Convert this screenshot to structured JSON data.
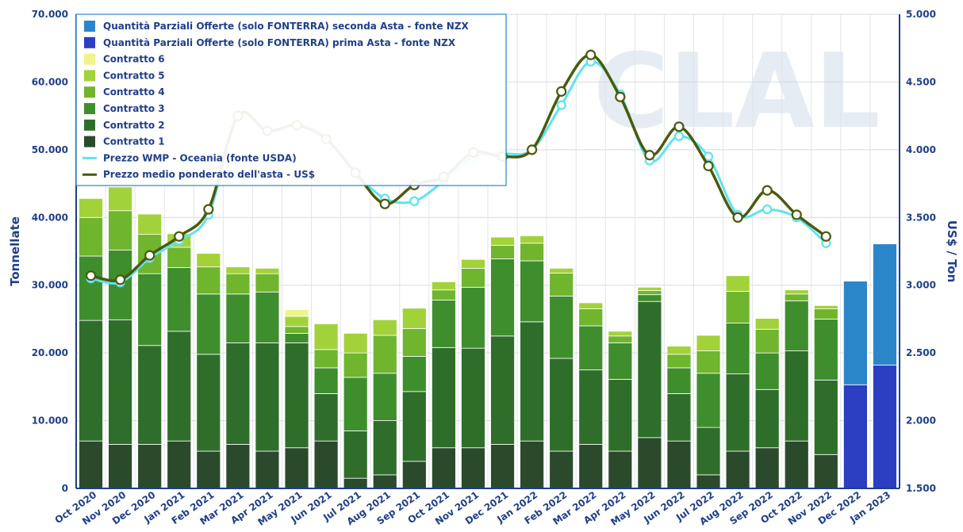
{
  "watermark": "CLAL",
  "chart_data": {
    "type": "bar",
    "stacked": true,
    "grid": true,
    "legend_position": "top-left",
    "categories": [
      "Oct 2020",
      "Nov 2020",
      "Dec 2020",
      "Jan 2021",
      "Feb 2021",
      "Mar 2021",
      "Apr 2021",
      "May 2021",
      "Jun 2021",
      "Jul 2021",
      "Aug 2021",
      "Sep 2021",
      "Oct 2021",
      "Nov 2021",
      "Dec 2021",
      "Jan 2022",
      "Feb 2022",
      "Mar 2022",
      "Apr 2022",
      "May 2022",
      "Jun 2022",
      "Jul 2022",
      "Aug 2022",
      "Sep 2022",
      "Oct 2022",
      "Nov 2022",
      "Dec 2022",
      "Jan 2023"
    ],
    "y_left": {
      "label": "Tonnellate",
      "min": 0,
      "max": 70000,
      "ticks": [
        "0",
        "10.000",
        "20.000",
        "30.000",
        "40.000",
        "50.000",
        "60.000",
        "70.000"
      ]
    },
    "y_right": {
      "label": "US$ / Ton",
      "min": 1500,
      "max": 5000,
      "ticks": [
        "1.500",
        "2.000",
        "2.500",
        "3.000",
        "3.500",
        "4.000",
        "4.500",
        "5.000"
      ]
    },
    "series": [
      {
        "name": "Contratto 1",
        "color": "#2b4a2c",
        "values": [
          7000,
          6500,
          6500,
          7000,
          5500,
          6500,
          5500,
          6000,
          7000,
          1500,
          2000,
          4000,
          6000,
          6000,
          6500,
          7000,
          5500,
          6500,
          5500,
          7500,
          7000,
          2000,
          5500,
          6000,
          7000,
          5000,
          null,
          null
        ]
      },
      {
        "name": "Contratto 2",
        "color": "#2f6e2a",
        "values": [
          17800,
          18400,
          14600,
          16200,
          14300,
          15000,
          16000,
          15500,
          7000,
          7000,
          8000,
          10300,
          14800,
          14700,
          16000,
          17600,
          13700,
          11000,
          10600,
          20100,
          7000,
          7000,
          11400,
          8600,
          13300,
          11000,
          null,
          null
        ]
      },
      {
        "name": "Contratto 3",
        "color": "#3f8e2e",
        "values": [
          9500,
          10300,
          10600,
          9400,
          8900,
          7200,
          7500,
          1400,
          3800,
          7900,
          7000,
          5200,
          7000,
          9000,
          11400,
          9000,
          9200,
          6500,
          5400,
          1000,
          3800,
          8000,
          7500,
          5400,
          7400,
          9000,
          null,
          null
        ]
      },
      {
        "name": "Contratto 4",
        "color": "#6fb52e",
        "values": [
          5700,
          5800,
          5800,
          3000,
          4000,
          3000,
          2700,
          1000,
          2700,
          3600,
          5600,
          4100,
          1500,
          2800,
          2000,
          2600,
          3400,
          2500,
          1000,
          600,
          2000,
          3300,
          4700,
          3500,
          1000,
          1500,
          null,
          null
        ]
      },
      {
        "name": "Contratto 5",
        "color": "#a2d23a",
        "values": [
          2800,
          3500,
          3000,
          2000,
          2000,
          1000,
          800,
          1500,
          3800,
          2900,
          2300,
          3000,
          1200,
          1300,
          1200,
          1100,
          700,
          900,
          700,
          500,
          1200,
          2300,
          2300,
          1600,
          600,
          500,
          null,
          null
        ]
      },
      {
        "name": "Contratto 6",
        "color": "#eef48a",
        "values": [
          0,
          0,
          0,
          0,
          0,
          0,
          0,
          1000,
          0,
          0,
          0,
          0,
          0,
          0,
          0,
          0,
          0,
          0,
          0,
          0,
          0,
          0,
          0,
          0,
          0,
          0,
          null,
          null
        ]
      },
      {
        "name": "Quantità Parziali Offerte (solo FONTERRA) prima Asta - fonte NZX",
        "color": "#2c3ec2",
        "values": [
          null,
          null,
          null,
          null,
          null,
          null,
          null,
          null,
          null,
          null,
          null,
          null,
          null,
          null,
          null,
          null,
          null,
          null,
          null,
          null,
          null,
          null,
          null,
          null,
          null,
          null,
          15300,
          18200
        ]
      },
      {
        "name": "Quantità Parziali Offerte (solo FONTERRA) seconda Asta - fonte NZX",
        "color": "#2b86c9",
        "values": [
          null,
          null,
          null,
          null,
          null,
          null,
          null,
          null,
          null,
          null,
          null,
          null,
          null,
          null,
          null,
          null,
          null,
          null,
          null,
          null,
          null,
          null,
          null,
          null,
          null,
          null,
          15300,
          17900
        ]
      }
    ],
    "lines": [
      {
        "name": "Prezzo WMP - Oceania (fonte USDA)",
        "color": "#5ee3f0",
        "axis": "right",
        "values": [
          3050,
          3020,
          3200,
          3330,
          3520,
          4250,
          4140,
          4180,
          4080,
          3830,
          3640,
          3620,
          3770,
          3950,
          3970,
          4000,
          4330,
          4650,
          4410,
          3920,
          4100,
          3950,
          3520,
          3560,
          3500,
          3310,
          null,
          null
        ]
      },
      {
        "name": "Prezzo medio ponderato dell'asta - US$",
        "color": "#4a5a0c",
        "axis": "right",
        "values": [
          3070,
          3040,
          3220,
          3360,
          3560,
          4250,
          4140,
          4180,
          4080,
          3830,
          3600,
          3740,
          3800,
          3980,
          3950,
          4000,
          4430,
          4700,
          4390,
          3960,
          4170,
          3880,
          3500,
          3700,
          3520,
          3360,
          null,
          null
        ]
      }
    ],
    "legend_order": [
      "Quantità Parziali Offerte (solo FONTERRA) seconda Asta - fonte NZX",
      "Quantità Parziali Offerte (solo FONTERRA) prima Asta - fonte NZX",
      "Contratto 6",
      "Contratto 5",
      "Contratto 4",
      "Contratto 3",
      "Contratto 2",
      "Contratto 1",
      "Prezzo WMP - Oceania (fonte USDA)",
      "Prezzo medio ponderato dell'asta - US$"
    ]
  }
}
